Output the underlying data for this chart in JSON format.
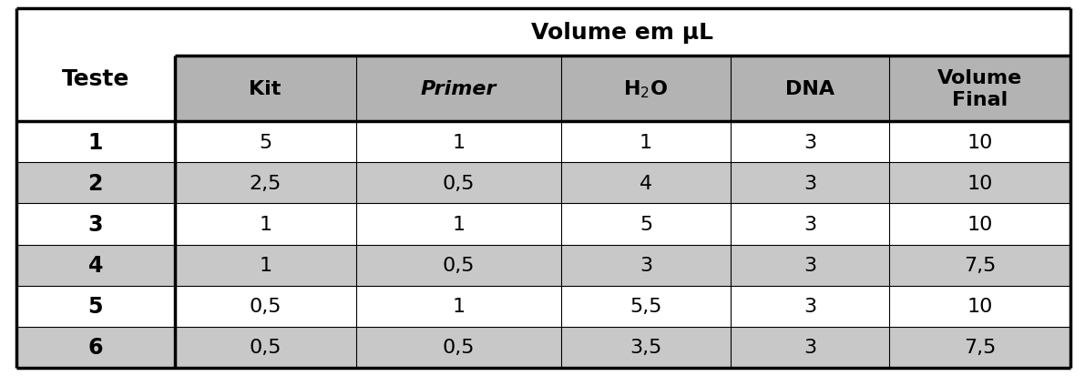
{
  "title": "Volume em μL",
  "col_headers": [
    "Kit",
    "Primer",
    "H₂O",
    "DNA",
    "Volume\nFinal"
  ],
  "row_headers": [
    "1",
    "2",
    "3",
    "4",
    "5",
    "6"
  ],
  "data": [
    [
      "5",
      "1",
      "1",
      "3",
      "10"
    ],
    [
      "2,5",
      "0,5",
      "4",
      "3",
      "10"
    ],
    [
      "1",
      "1",
      "5",
      "3",
      "10"
    ],
    [
      "1",
      "0,5",
      "3",
      "3",
      "7,5"
    ],
    [
      "0,5",
      "1",
      "5,5",
      "3",
      "10"
    ],
    [
      "0,5",
      "0,5",
      "3,5",
      "3",
      "7,5"
    ]
  ],
  "header_bg": "#b3b3b3",
  "row_bg_gray": "#c8c8c8",
  "row_bg_white": "#ffffff",
  "text_color": "#000000",
  "border_color": "#000000",
  "bg_color": "#ffffff",
  "title_fontsize": 18,
  "header_fontsize": 16,
  "cell_fontsize": 16,
  "row_header_fontsize": 17,
  "teste_fontsize": 18
}
